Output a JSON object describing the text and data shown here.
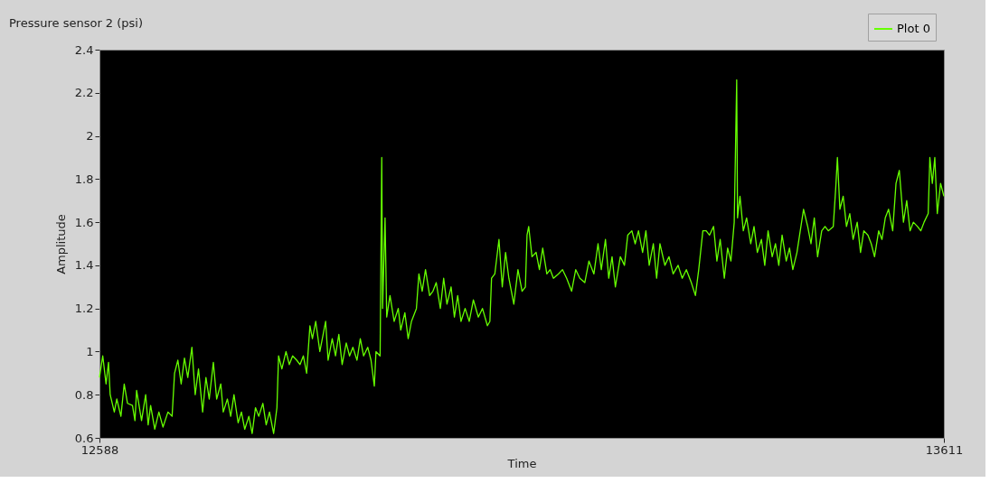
{
  "chart_data": {
    "type": "line",
    "title": "Pressure sensor 2 (psi)",
    "xlabel": "Time",
    "ylabel": "Amplitude",
    "xlim": [
      12588,
      13611
    ],
    "xticks": [
      12588,
      13611
    ],
    "ylim": [
      0.6,
      2.4
    ],
    "yticks": [
      0.6,
      0.8,
      1,
      1.2,
      1.4,
      1.6,
      1.8,
      2,
      2.2,
      2.4
    ],
    "grid": false,
    "legend": "top right",
    "series": [
      {
        "name": "Plot 0",
        "color": "#66ff00",
        "x": [
          12588,
          12592,
          12596,
          12599,
          12601,
          12606,
          12609,
          12614,
          12618,
          12622,
          12628,
          12631,
          12633,
          12639,
          12644,
          12647,
          12650,
          12655,
          12660,
          12665,
          12671,
          12676,
          12679,
          12683,
          12687,
          12691,
          12695,
          12700,
          12704,
          12708,
          12713,
          12717,
          12721,
          12726,
          12730,
          12735,
          12738,
          12743,
          12747,
          12751,
          12756,
          12760,
          12764,
          12769,
          12773,
          12777,
          12781,
          12786,
          12790,
          12794,
          12799,
          12803,
          12805,
          12809,
          12814,
          12818,
          12822,
          12827,
          12831,
          12835,
          12839,
          12843,
          12846,
          12850,
          12855,
          12859,
          12862,
          12865,
          12870,
          12874,
          12878,
          12882,
          12887,
          12891,
          12895,
          12900,
          12904,
          12908,
          12913,
          12917,
          12921,
          12923,
          12928,
          12930,
          12931,
          12934,
          12936,
          12940,
          12945,
          12950,
          12953,
          12958,
          12962,
          12966,
          12972,
          12975,
          12979,
          12983,
          12988,
          12992,
          12996,
          13001,
          13005,
          13009,
          13014,
          13018,
          13022,
          13026,
          13031,
          13036,
          13041,
          13047,
          13052,
          13058,
          13061,
          13063,
          13067,
          13072,
          13076,
          13080,
          13084,
          13090,
          13095,
          13100,
          13104,
          13106,
          13108,
          13112,
          13117,
          13121,
          13125,
          13130,
          13134,
          13138,
          13144,
          13149,
          13154,
          13160,
          13165,
          13170,
          13176,
          13181,
          13187,
          13192,
          13196,
          13201,
          13205,
          13209,
          13213,
          13219,
          13224,
          13228,
          13233,
          13237,
          13241,
          13246,
          13250,
          13254,
          13259,
          13263,
          13267,
          13273,
          13278,
          13283,
          13289,
          13294,
          13299,
          13305,
          13310,
          13314,
          13319,
          13323,
          13327,
          13332,
          13336,
          13340,
          13345,
          13349,
          13353,
          13357,
          13360,
          13361,
          13364,
          13368,
          13372,
          13377,
          13381,
          13385,
          13390,
          13394,
          13398,
          13403,
          13407,
          13411,
          13415,
          13420,
          13424,
          13428,
          13433,
          13437,
          13441,
          13446,
          13450,
          13454,
          13458,
          13463,
          13467,
          13471,
          13477,
          13480,
          13482,
          13485,
          13489,
          13493,
          13497,
          13501,
          13506,
          13510,
          13514,
          13519,
          13523,
          13527,
          13532,
          13536,
          13540,
          13544,
          13549,
          13553,
          13557,
          13562,
          13566,
          13570,
          13574,
          13579,
          13583,
          13587,
          13592,
          13594,
          13597,
          13600,
          13603,
          13607,
          13611
        ],
        "values": [
          0.88,
          0.98,
          0.85,
          0.95,
          0.8,
          0.72,
          0.78,
          0.7,
          0.85,
          0.76,
          0.75,
          0.68,
          0.82,
          0.68,
          0.8,
          0.66,
          0.75,
          0.64,
          0.72,
          0.65,
          0.72,
          0.7,
          0.9,
          0.96,
          0.85,
          0.97,
          0.88,
          1.02,
          0.8,
          0.92,
          0.72,
          0.88,
          0.78,
          0.95,
          0.78,
          0.85,
          0.72,
          0.78,
          0.7,
          0.8,
          0.67,
          0.72,
          0.64,
          0.7,
          0.62,
          0.74,
          0.7,
          0.76,
          0.66,
          0.72,
          0.62,
          0.74,
          0.98,
          0.92,
          1.0,
          0.94,
          0.98,
          0.96,
          0.94,
          0.98,
          0.9,
          1.12,
          1.06,
          1.14,
          1.0,
          1.08,
          1.14,
          0.96,
          1.06,
          0.98,
          1.08,
          0.94,
          1.04,
          0.98,
          1.02,
          0.96,
          1.06,
          0.98,
          1.02,
          0.96,
          0.84,
          1.0,
          0.98,
          1.9,
          1.2,
          1.62,
          1.16,
          1.26,
          1.14,
          1.2,
          1.1,
          1.18,
          1.06,
          1.14,
          1.2,
          1.36,
          1.28,
          1.38,
          1.26,
          1.28,
          1.32,
          1.2,
          1.34,
          1.22,
          1.3,
          1.16,
          1.26,
          1.14,
          1.2,
          1.14,
          1.24,
          1.16,
          1.2,
          1.12,
          1.14,
          1.34,
          1.36,
          1.52,
          1.3,
          1.46,
          1.34,
          1.22,
          1.38,
          1.28,
          1.3,
          1.54,
          1.58,
          1.44,
          1.46,
          1.38,
          1.48,
          1.36,
          1.38,
          1.34,
          1.36,
          1.38,
          1.34,
          1.28,
          1.38,
          1.34,
          1.32,
          1.42,
          1.36,
          1.5,
          1.38,
          1.52,
          1.34,
          1.44,
          1.3,
          1.44,
          1.4,
          1.54,
          1.56,
          1.5,
          1.56,
          1.46,
          1.56,
          1.4,
          1.5,
          1.34,
          1.5,
          1.4,
          1.44,
          1.36,
          1.4,
          1.34,
          1.38,
          1.32,
          1.26,
          1.38,
          1.56,
          1.56,
          1.54,
          1.58,
          1.42,
          1.52,
          1.34,
          1.48,
          1.42,
          1.6,
          2.26,
          1.62,
          1.72,
          1.56,
          1.62,
          1.5,
          1.58,
          1.46,
          1.52,
          1.4,
          1.56,
          1.44,
          1.5,
          1.4,
          1.54,
          1.42,
          1.48,
          1.38,
          1.46,
          1.56,
          1.66,
          1.58,
          1.5,
          1.62,
          1.44,
          1.56,
          1.58,
          1.56,
          1.58,
          1.76,
          1.9,
          1.66,
          1.72,
          1.58,
          1.64,
          1.52,
          1.6,
          1.46,
          1.56,
          1.54,
          1.5,
          1.44,
          1.56,
          1.52,
          1.62,
          1.66,
          1.56,
          1.78,
          1.84,
          1.6,
          1.7,
          1.56,
          1.6,
          1.58,
          1.56,
          1.6,
          1.64,
          1.9,
          1.78,
          1.9,
          1.64,
          1.78,
          1.72
        ]
      }
    ]
  }
}
